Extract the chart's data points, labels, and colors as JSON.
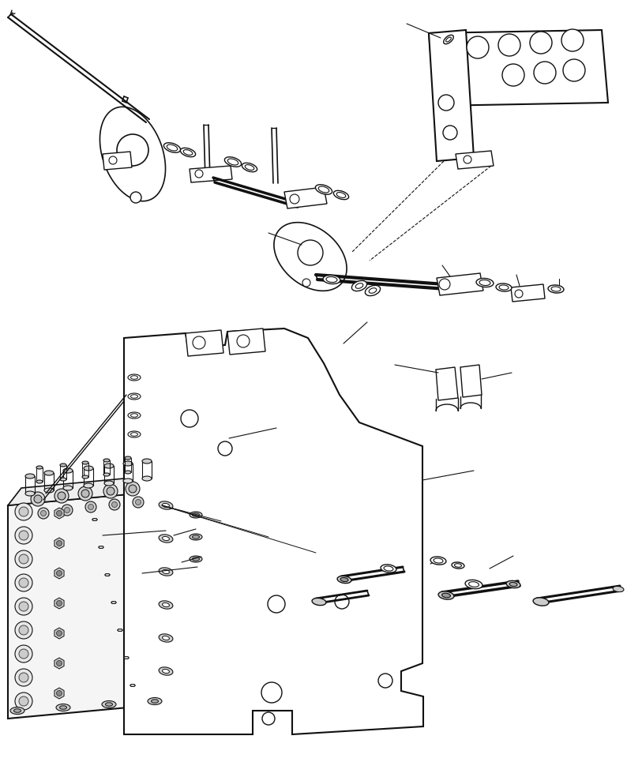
{
  "bg_color": "#ffffff",
  "line_color": "#111111",
  "lw": 1.0,
  "figsize": [
    8.13,
    9.65
  ],
  "dpi": 100,
  "xlim": [
    0,
    813
  ],
  "ylim": [
    0,
    965
  ]
}
